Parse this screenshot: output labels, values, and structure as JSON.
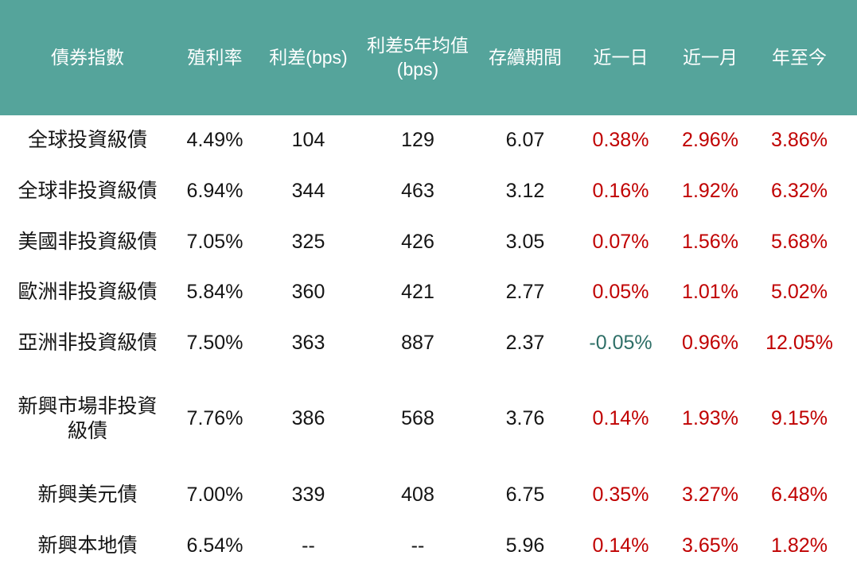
{
  "colors": {
    "header_bg": "#55A49B",
    "header_text": "#FFFFFF",
    "body_text": "#151515",
    "gain_red": "#C00000",
    "loss_teal": "#2E6F67",
    "page_bg": "#FFFFFF"
  },
  "chart_data": {
    "type": "table",
    "columns": [
      "債券指數",
      "殖利率",
      "利差(bps)",
      "利差5年均值\n(bps)",
      "存續期間",
      "近一日",
      "近一月",
      "年至今"
    ],
    "rows": [
      {
        "name": "全球投資級債",
        "yield": "4.49%",
        "spread": "104",
        "spread_5y_avg": "129",
        "duration": "6.07",
        "day": "0.38%",
        "month": "2.96%",
        "ytd": "3.86%"
      },
      {
        "name": "全球非投資級債",
        "yield": "6.94%",
        "spread": "344",
        "spread_5y_avg": "463",
        "duration": "3.12",
        "day": "0.16%",
        "month": "1.92%",
        "ytd": "6.32%"
      },
      {
        "name": "美國非投資級債",
        "yield": "7.05%",
        "spread": "325",
        "spread_5y_avg": "426",
        "duration": "3.05",
        "day": "0.07%",
        "month": "1.56%",
        "ytd": "5.68%"
      },
      {
        "name": "歐洲非投資級債",
        "yield": "5.84%",
        "spread": "360",
        "spread_5y_avg": "421",
        "duration": "2.77",
        "day": "0.05%",
        "month": "1.01%",
        "ytd": "5.02%"
      },
      {
        "name": "亞洲非投資級債",
        "yield": "7.50%",
        "spread": "363",
        "spread_5y_avg": "887",
        "duration": "2.37",
        "day": "-0.05%",
        "month": "0.96%",
        "ytd": "12.05%"
      },
      {
        "name": "新興市場非投資\n級債",
        "yield": "7.76%",
        "spread": "386",
        "spread_5y_avg": "568",
        "duration": "3.76",
        "day": "0.14%",
        "month": "1.93%",
        "ytd": "9.15%"
      },
      {
        "name": "新興美元債",
        "yield": "7.00%",
        "spread": "339",
        "spread_5y_avg": "408",
        "duration": "6.75",
        "day": "0.35%",
        "month": "3.27%",
        "ytd": "6.48%"
      },
      {
        "name": "新興本地債",
        "yield": "6.54%",
        "spread": "--",
        "spread_5y_avg": "--",
        "duration": "5.96",
        "day": "0.14%",
        "month": "3.65%",
        "ytd": "1.82%"
      }
    ]
  }
}
